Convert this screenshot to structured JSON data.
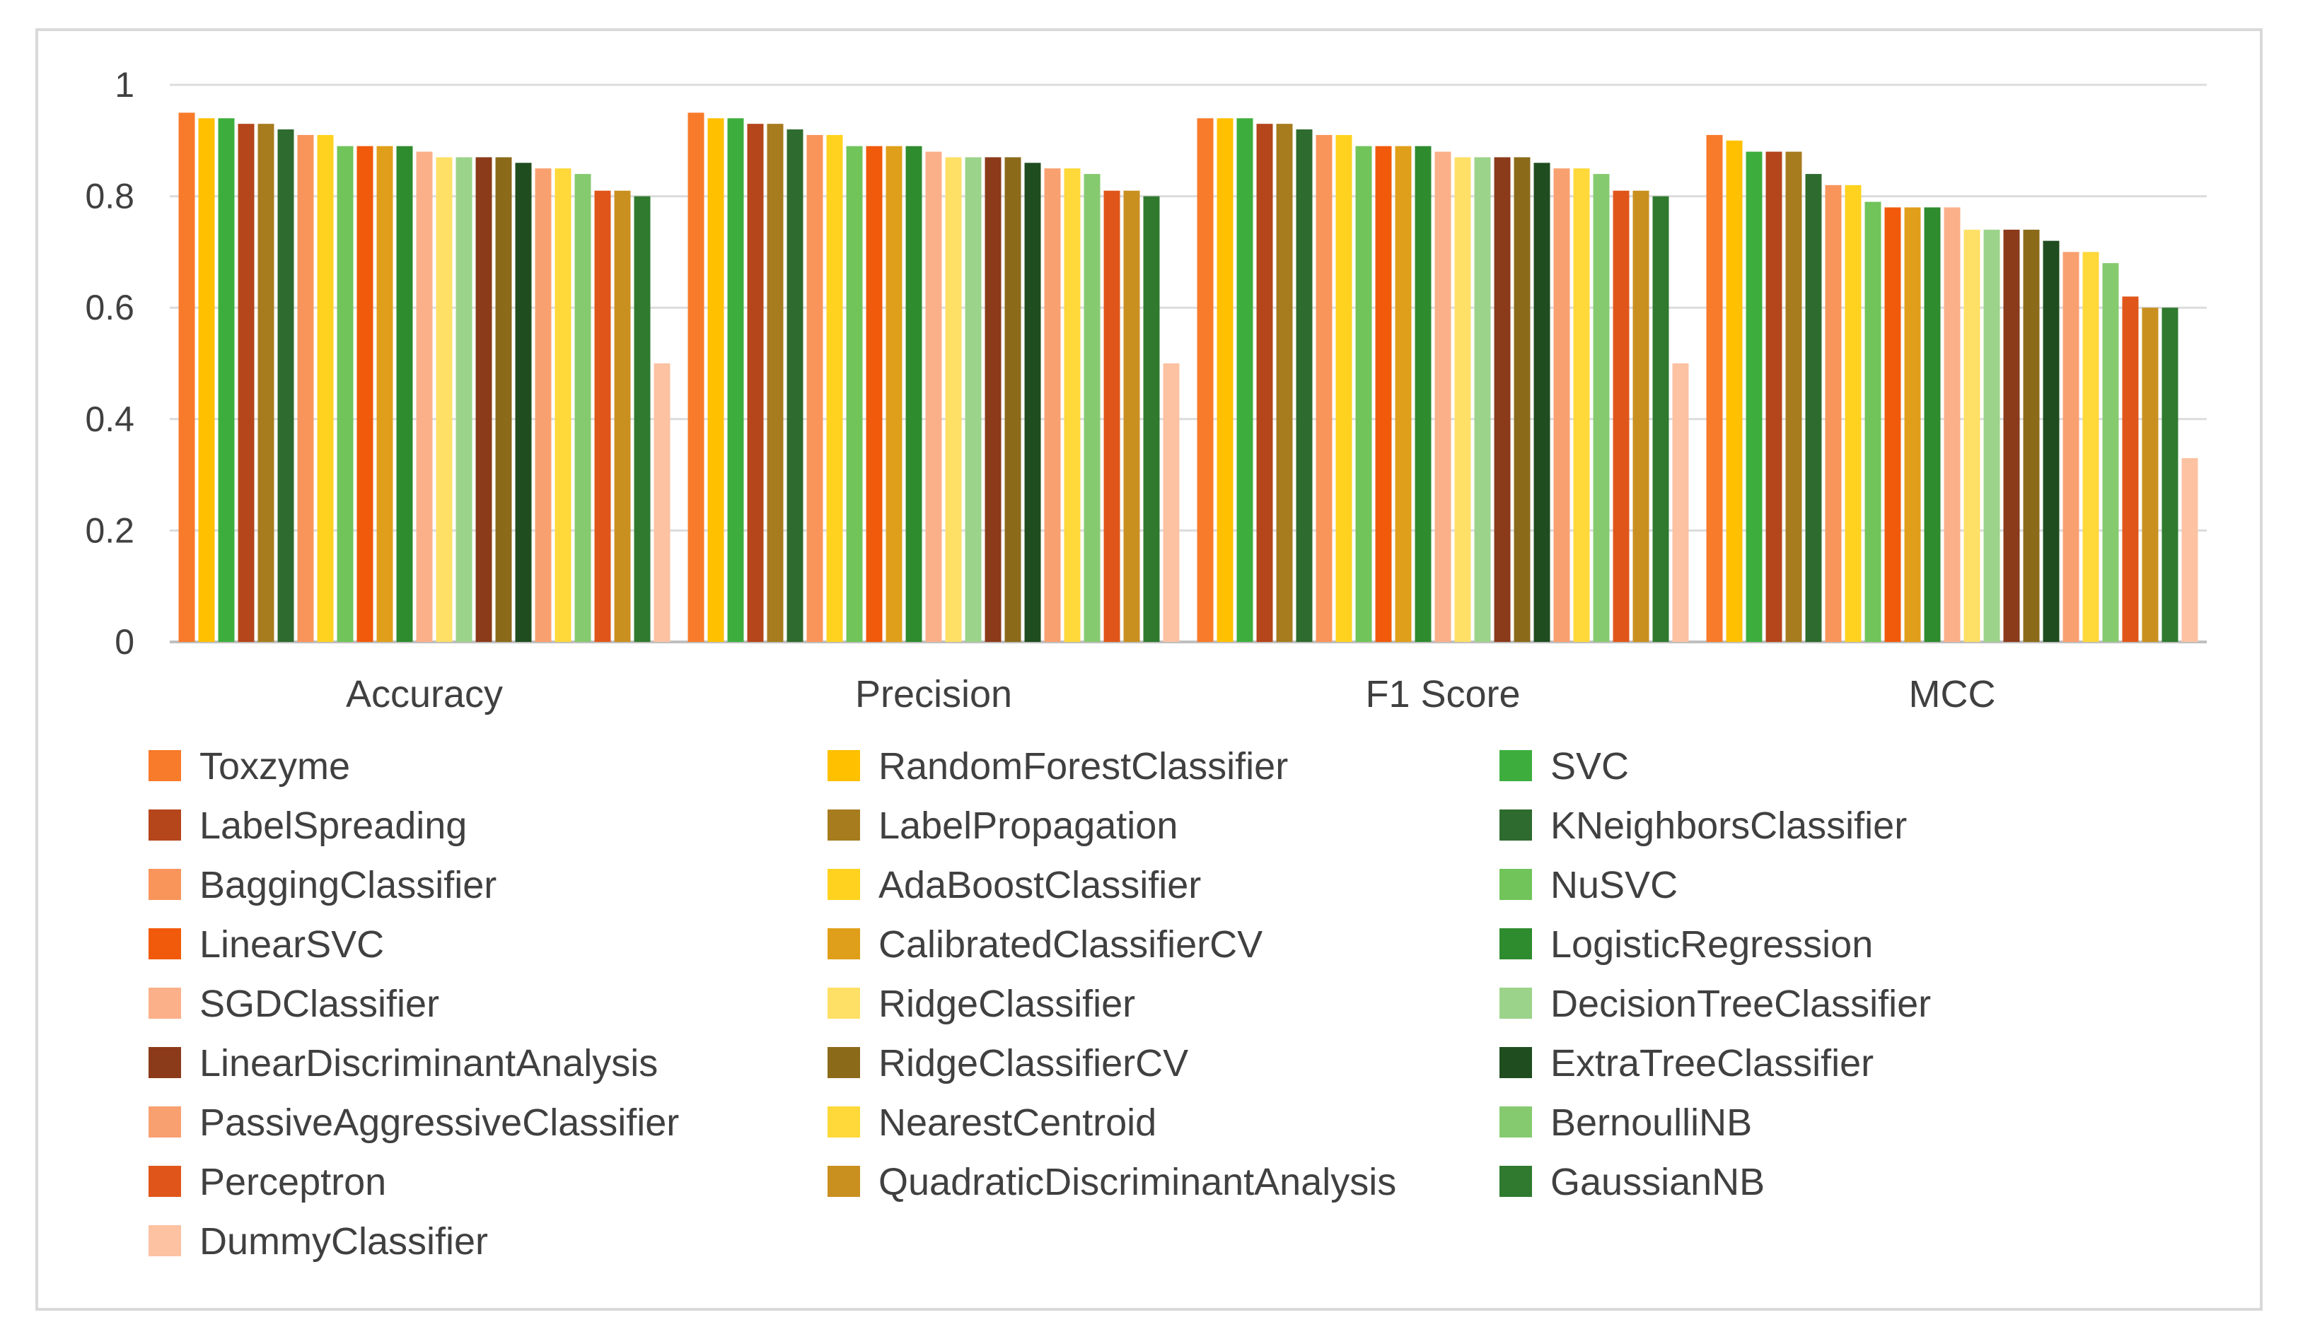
{
  "chart_data": {
    "type": "bar",
    "categories": [
      "Accuracy",
      "Precision",
      "F1 Score",
      "MCC"
    ],
    "ylim": [
      0,
      1
    ],
    "yticks": [
      "0",
      "0.2",
      "0.4",
      "0.6",
      "0.8",
      "1"
    ],
    "ytick_values": [
      0,
      0.2,
      0.4,
      0.6,
      0.8,
      1
    ],
    "grid": true,
    "legend_position": "bottom",
    "title": "",
    "xlabel": "",
    "ylabel": "",
    "series": [
      {
        "name": "Toxzyme",
        "color": "#F87A2B",
        "values": [
          0.95,
          0.95,
          0.94,
          0.91
        ]
      },
      {
        "name": "RandomForestClassifier",
        "color": "#FFC000",
        "values": [
          0.94,
          0.94,
          0.94,
          0.9
        ]
      },
      {
        "name": "SVC",
        "color": "#3DAE3D",
        "values": [
          0.94,
          0.94,
          0.94,
          0.88
        ]
      },
      {
        "name": "LabelSpreading",
        "color": "#B5451B",
        "values": [
          0.93,
          0.93,
          0.93,
          0.88
        ]
      },
      {
        "name": "LabelPropagation",
        "color": "#A67C1E",
        "values": [
          0.93,
          0.93,
          0.93,
          0.88
        ]
      },
      {
        "name": "KNeighborsClassifier",
        "color": "#2E6B2E",
        "values": [
          0.92,
          0.92,
          0.92,
          0.84
        ]
      },
      {
        "name": "BaggingClassifier",
        "color": "#F9955A",
        "values": [
          0.91,
          0.91,
          0.91,
          0.82
        ]
      },
      {
        "name": "AdaBoostClassifier",
        "color": "#FFD21F",
        "values": [
          0.91,
          0.91,
          0.91,
          0.82
        ]
      },
      {
        "name": "NuSVC",
        "color": "#70C45A",
        "values": [
          0.89,
          0.89,
          0.89,
          0.79
        ]
      },
      {
        "name": "LinearSVC",
        "color": "#F05A0A",
        "values": [
          0.89,
          0.89,
          0.89,
          0.78
        ]
      },
      {
        "name": "CalibratedClassifierCV",
        "color": "#E09F1A",
        "values": [
          0.89,
          0.89,
          0.89,
          0.78
        ]
      },
      {
        "name": "LogisticRegression",
        "color": "#2E8B2E",
        "values": [
          0.89,
          0.89,
          0.89,
          0.78
        ]
      },
      {
        "name": "SGDClassifier",
        "color": "#FBB08A",
        "values": [
          0.88,
          0.88,
          0.88,
          0.78
        ]
      },
      {
        "name": "RidgeClassifier",
        "color": "#FFE066",
        "values": [
          0.87,
          0.87,
          0.87,
          0.74
        ]
      },
      {
        "name": "DecisionTreeClassifier",
        "color": "#9CD38A",
        "values": [
          0.87,
          0.87,
          0.87,
          0.74
        ]
      },
      {
        "name": "LinearDiscriminantAnalysis",
        "color": "#8B3A1A",
        "values": [
          0.87,
          0.87,
          0.87,
          0.74
        ]
      },
      {
        "name": "RidgeClassifierCV",
        "color": "#8B6A1A",
        "values": [
          0.87,
          0.87,
          0.87,
          0.74
        ]
      },
      {
        "name": "ExtraTreeClassifier",
        "color": "#1F4D1F",
        "values": [
          0.86,
          0.86,
          0.86,
          0.72
        ]
      },
      {
        "name": "PassiveAggressiveClassifier",
        "color": "#F9A070",
        "values": [
          0.85,
          0.85,
          0.85,
          0.7
        ]
      },
      {
        "name": "NearestCentroid",
        "color": "#FFD83A",
        "values": [
          0.85,
          0.85,
          0.85,
          0.7
        ]
      },
      {
        "name": "BernoulliNB",
        "color": "#86CA70",
        "values": [
          0.84,
          0.84,
          0.84,
          0.68
        ]
      },
      {
        "name": "Perceptron",
        "color": "#E0561A",
        "values": [
          0.81,
          0.81,
          0.81,
          0.62
        ]
      },
      {
        "name": "QuadraticDiscriminantAnalysis",
        "color": "#C99020",
        "values": [
          0.81,
          0.81,
          0.81,
          0.6
        ]
      },
      {
        "name": "GaussianNB",
        "color": "#2F7A2F",
        "values": [
          0.8,
          0.8,
          0.8,
          0.6
        ]
      },
      {
        "name": "DummyClassifier",
        "color": "#FCC2A2",
        "values": [
          0.5,
          0.5,
          0.5,
          0.33
        ]
      }
    ]
  }
}
